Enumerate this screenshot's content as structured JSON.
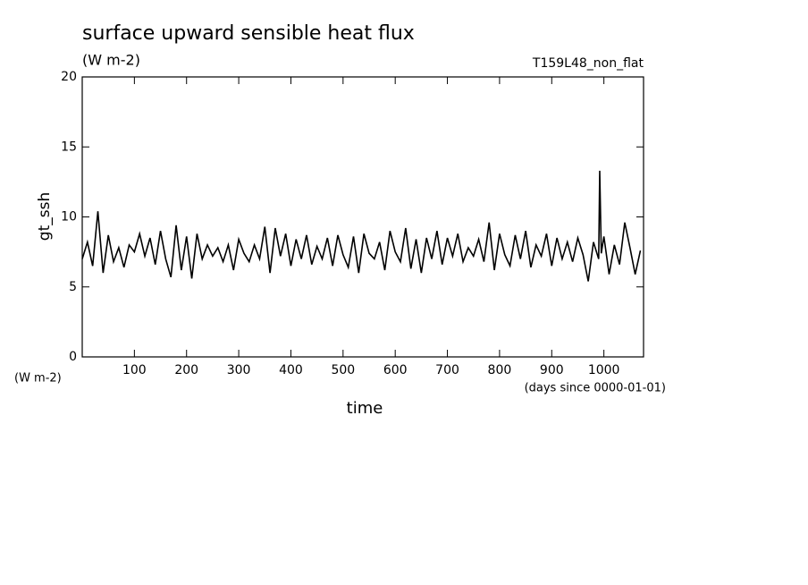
{
  "chart_data": {
    "type": "line",
    "title": "surface upward sensible heat flux",
    "subtitle": "(W m-2)",
    "annotation": "T159L48_non_flat",
    "ylabel": "gt_ssh",
    "yunits": "(W m-2)",
    "xlabel": "time",
    "xunits": "(days since 0000-01-01)",
    "xlim": [
      0,
      1076
    ],
    "ylim": [
      0,
      20
    ],
    "xticks": [
      100,
      200,
      300,
      400,
      500,
      600,
      700,
      800,
      900,
      1000
    ],
    "yticks": [
      0,
      5,
      10,
      15,
      20
    ],
    "x": [
      0,
      10,
      20,
      30,
      40,
      50,
      60,
      70,
      80,
      90,
      100,
      110,
      120,
      130,
      140,
      150,
      160,
      170,
      180,
      190,
      200,
      210,
      220,
      230,
      240,
      250,
      260,
      270,
      280,
      290,
      300,
      310,
      320,
      330,
      340,
      350,
      360,
      370,
      380,
      390,
      400,
      410,
      420,
      430,
      440,
      450,
      460,
      470,
      480,
      490,
      500,
      510,
      520,
      530,
      540,
      550,
      560,
      570,
      580,
      590,
      600,
      610,
      620,
      630,
      640,
      650,
      660,
      670,
      680,
      690,
      700,
      710,
      720,
      730,
      740,
      750,
      760,
      770,
      780,
      790,
      800,
      810,
      820,
      830,
      840,
      850,
      860,
      870,
      880,
      890,
      900,
      910,
      920,
      930,
      940,
      950,
      960,
      970,
      980,
      990,
      992,
      995,
      1000,
      1010,
      1020,
      1030,
      1040,
      1050,
      1060,
      1070
    ],
    "series": [
      {
        "name": "gt_ssh",
        "color": "#000000",
        "values": [
          7.0,
          8.2,
          6.5,
          10.4,
          6.0,
          8.7,
          6.8,
          7.8,
          6.4,
          8.0,
          7.5,
          8.8,
          7.2,
          8.5,
          6.6,
          9.0,
          7.0,
          5.7,
          9.4,
          6.2,
          8.6,
          5.6,
          8.8,
          7.0,
          8.0,
          7.2,
          7.8,
          6.8,
          8.0,
          6.2,
          8.4,
          7.4,
          6.8,
          8.0,
          7.0,
          9.3,
          6.0,
          9.2,
          7.2,
          8.8,
          6.5,
          8.4,
          7.0,
          8.7,
          6.6,
          7.9,
          7.0,
          8.5,
          6.5,
          8.7,
          7.3,
          6.4,
          8.6,
          6.0,
          8.8,
          7.4,
          7.0,
          8.2,
          6.2,
          9.0,
          7.5,
          6.8,
          9.2,
          6.3,
          8.4,
          6.0,
          8.5,
          7.0,
          9.0,
          6.6,
          8.5,
          7.2,
          8.8,
          6.8,
          7.8,
          7.2,
          8.4,
          6.8,
          9.6,
          6.2,
          8.8,
          7.3,
          6.5,
          8.7,
          7.0,
          9.0,
          6.4,
          8.0,
          7.2,
          8.8,
          6.5,
          8.5,
          7.0,
          8.2,
          6.8,
          8.5,
          7.3,
          5.4,
          8.2,
          7.0,
          13.3,
          7.4,
          8.6,
          5.9,
          8.0,
          6.6,
          9.6,
          7.8,
          5.9,
          7.6
        ]
      }
    ]
  }
}
